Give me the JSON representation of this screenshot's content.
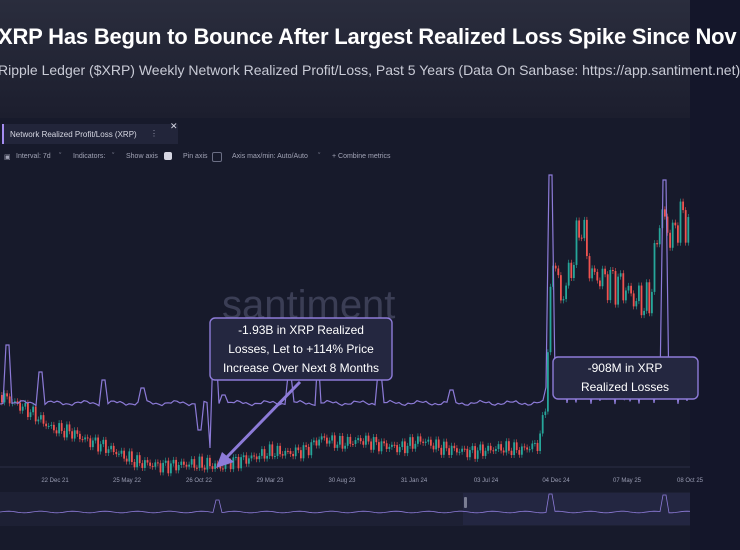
{
  "header": {
    "title": "XRP Has Begun to Bounce After Largest Realized Loss Spike Since Nov",
    "subtitle": "Ripple Ledger ($XRP) Weekly Network Realized Profit/Loss, Past 5 Years (Data On Sanbase: https://app.santiment.net)"
  },
  "metric_tab": {
    "label": "Network Realized Profit/Loss (XRP)",
    "menu_icon": "more-vertical-icon",
    "close_icon": "close-icon"
  },
  "toolbar": {
    "interval": "Interval: 7d",
    "indicators": "Indicators:",
    "show_axis": "Show axis",
    "pin_axis": "Pin axis",
    "axis_maxmin": "Axis max/min: Auto/Auto",
    "combine": "+ Combine metrics"
  },
  "watermark": "santiment",
  "colors": {
    "up": "#26a69a",
    "down": "#ef5350",
    "metric": "#8d7bd8",
    "accent": "#a58df0"
  },
  "chart_data": {
    "type": "line",
    "x_tick_labels": [
      "22 Dec 21",
      "25 May 22",
      "26 Oct 22",
      "29 Mar 23",
      "30 Aug 23",
      "31 Jan 24",
      "03 Jul 24",
      "04 Dec 24",
      "07 May 25",
      "08 Oct 25"
    ],
    "series": [
      {
        "name": "Network Realized Profit/Loss (XRP)",
        "kind": "line"
      },
      {
        "name": "XRP price",
        "kind": "candlestick"
      }
    ],
    "annotations": [
      {
        "text": [
          "-1.93B in XRP Realized",
          "Losses, Let to +114% Price",
          "Increase Over Next 8 Months"
        ]
      },
      {
        "text": [
          "-908M in XRP",
          "Realized Losses"
        ]
      }
    ]
  }
}
